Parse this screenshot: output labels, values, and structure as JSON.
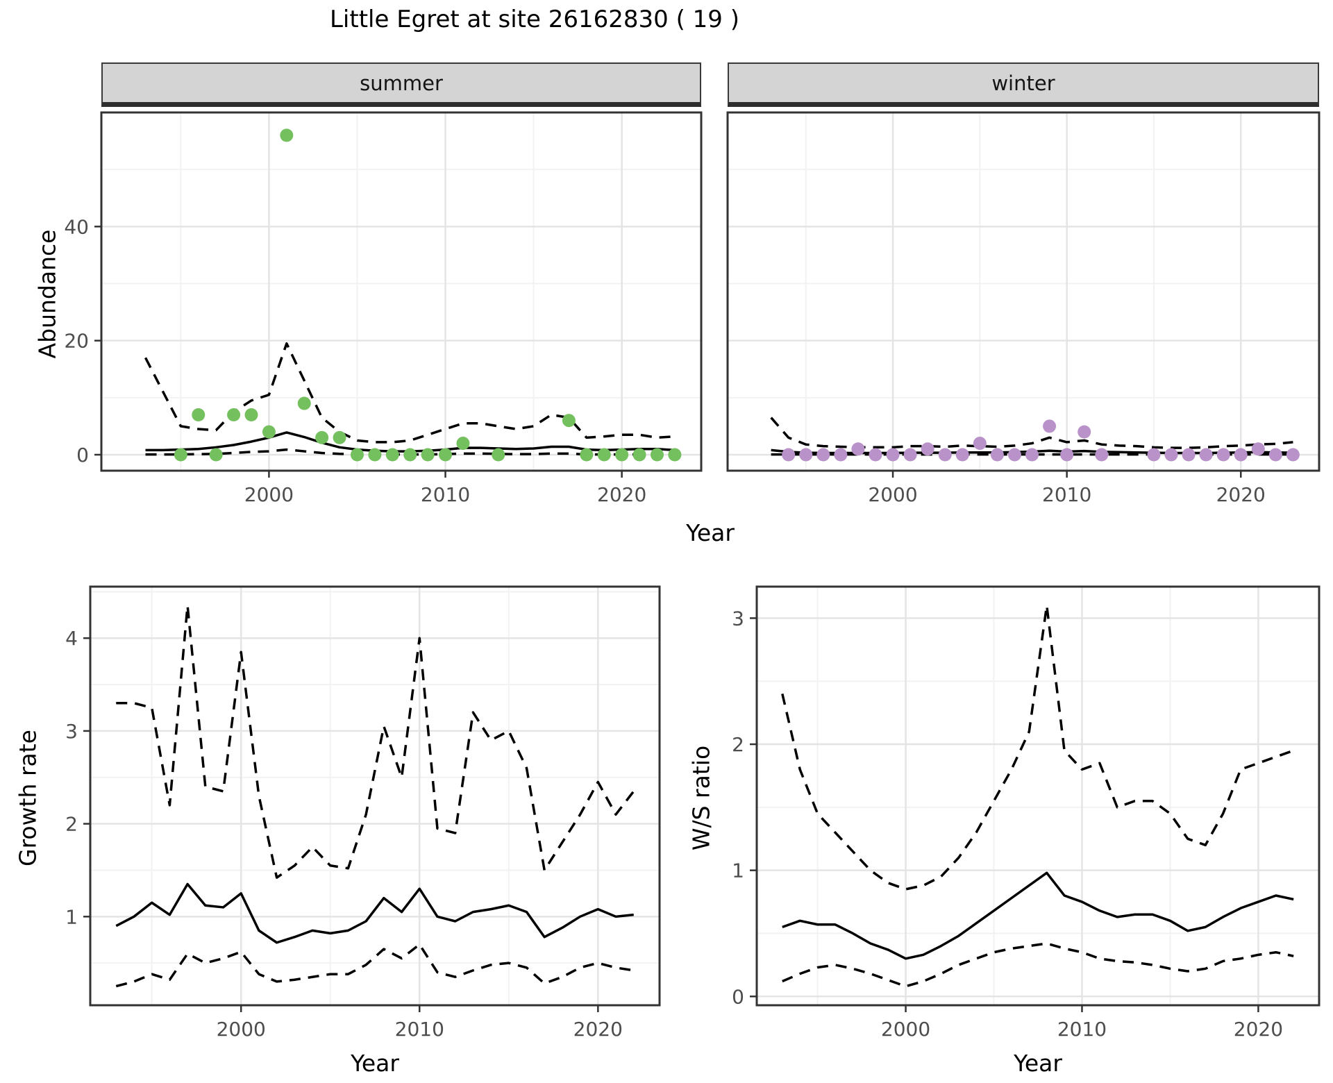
{
  "title": "Little Egret at site 26162830 ( 19 )",
  "facets": [
    {
      "label": "summer"
    },
    {
      "label": "winter"
    }
  ],
  "axis_labels": {
    "abundance": "Abundance",
    "year": "Year",
    "growth": "Growth rate",
    "ws": "W/S ratio"
  },
  "colors": {
    "summer_point": "#74c05e",
    "winter_point": "#b892c8",
    "line": "#000000",
    "grid_major": "#e4e4e4",
    "grid_minor": "#f2f2f2",
    "panel_border": "#333333",
    "tick_mark": "#333333",
    "tick_text": "#4d4d4d",
    "strip_bg": "#d4d4d4"
  },
  "chart_data": [
    {
      "id": "abundance-summer",
      "type": "scatter",
      "facet": "summer",
      "xlabel": "Year",
      "ylabel": "Abundance",
      "xlim": [
        1990.5,
        2024.5
      ],
      "ylim": [
        -2.8,
        60
      ],
      "xticks": [
        2000,
        2010,
        2020
      ],
      "xminor": [
        1995,
        2005,
        2015
      ],
      "yticks": [
        0,
        20,
        40
      ],
      "yminor": [
        10,
        30,
        50
      ],
      "show_y_labels": true,
      "point_color_key": "summer_point",
      "points": {
        "x": [
          1995,
          1996,
          1997,
          1998,
          1999,
          2000,
          2001,
          2002,
          2003,
          2004,
          2005,
          2006,
          2007,
          2008,
          2009,
          2010,
          2011,
          2013,
          2017,
          2018,
          2019,
          2020,
          2021,
          2022,
          2023
        ],
        "y": [
          0,
          7,
          0,
          7,
          7,
          4,
          56,
          9,
          3,
          3,
          0,
          0,
          0,
          0,
          0,
          0,
          2,
          0,
          6,
          0,
          0,
          0,
          0,
          0,
          0
        ]
      },
      "fit": {
        "x": [
          1993,
          1994,
          1995,
          1996,
          1997,
          1998,
          1999,
          2000,
          2001,
          2002,
          2003,
          2004,
          2005,
          2006,
          2007,
          2008,
          2009,
          2010,
          2011,
          2012,
          2013,
          2014,
          2015,
          2016,
          2017,
          2018,
          2019,
          2020,
          2021,
          2022,
          2023
        ],
        "y": [
          0.8,
          0.8,
          0.9,
          1.0,
          1.3,
          1.7,
          2.3,
          3.0,
          3.9,
          3.1,
          2.1,
          1.3,
          0.9,
          0.7,
          0.6,
          0.6,
          0.7,
          0.9,
          1.2,
          1.2,
          1.1,
          1.0,
          1.1,
          1.4,
          1.4,
          0.9,
          0.8,
          0.9,
          1.0,
          1.0,
          0.8
        ]
      },
      "upper": {
        "x": [
          1993,
          1994,
          1995,
          1996,
          1997,
          1998,
          1999,
          2000,
          2001,
          2002,
          2003,
          2004,
          2005,
          2006,
          2007,
          2008,
          2009,
          2010,
          2011,
          2012,
          2013,
          2014,
          2015,
          2016,
          2017,
          2018,
          2019,
          2020,
          2021,
          2022,
          2023
        ],
        "y": [
          17,
          11,
          5,
          4.5,
          4.3,
          7.5,
          9.5,
          10.5,
          19.5,
          13,
          6.5,
          4,
          2.5,
          2.2,
          2.2,
          2.5,
          3.5,
          4.5,
          5.5,
          5.5,
          5,
          4.5,
          5,
          7,
          6.5,
          3,
          3.2,
          3.5,
          3.5,
          3,
          3.2
        ]
      },
      "lower": {
        "x": [
          1993,
          1994,
          1995,
          1996,
          1997,
          1998,
          1999,
          2000,
          2001,
          2002,
          2003,
          2004,
          2005,
          2006,
          2007,
          2008,
          2009,
          2010,
          2011,
          2012,
          2013,
          2014,
          2015,
          2016,
          2017,
          2018,
          2019,
          2020,
          2021,
          2022,
          2023
        ],
        "y": [
          0.05,
          0.05,
          0.05,
          0.1,
          0.15,
          0.3,
          0.5,
          0.6,
          0.9,
          0.6,
          0.3,
          0.15,
          0.1,
          0.05,
          0.05,
          0.05,
          0.05,
          0.1,
          0.2,
          0.2,
          0.15,
          0.1,
          0.1,
          0.2,
          0.2,
          0.05,
          0.05,
          0.05,
          0.05,
          0.05,
          0.05
        ]
      }
    },
    {
      "id": "abundance-winter",
      "type": "scatter",
      "facet": "winter",
      "xlabel": "Year",
      "ylabel": "Abundance",
      "xlim": [
        1990.5,
        2024.5
      ],
      "ylim": [
        -2.8,
        60
      ],
      "xticks": [
        2000,
        2010,
        2020
      ],
      "xminor": [
        1995,
        2005,
        2015
      ],
      "yticks": [
        0,
        20,
        40
      ],
      "yminor": [
        10,
        30,
        50
      ],
      "show_y_labels": false,
      "point_color_key": "winter_point",
      "points": {
        "x": [
          1994,
          1995,
          1996,
          1997,
          1998,
          1999,
          2000,
          2001,
          2002,
          2003,
          2004,
          2005,
          2006,
          2007,
          2008,
          2009,
          2010,
          2011,
          2012,
          2015,
          2016,
          2017,
          2018,
          2019,
          2020,
          2021,
          2022,
          2023
        ],
        "y": [
          0,
          0,
          0,
          0,
          1,
          0,
          0,
          0,
          1,
          0,
          0,
          2,
          0,
          0,
          0,
          5,
          0,
          4,
          0,
          0,
          0,
          0,
          0,
          0,
          0,
          1,
          0,
          0
        ]
      },
      "fit": {
        "x": [
          1993,
          1994,
          1995,
          1996,
          1997,
          1998,
          1999,
          2000,
          2001,
          2002,
          2003,
          2004,
          2005,
          2006,
          2007,
          2008,
          2009,
          2010,
          2011,
          2012,
          2013,
          2014,
          2015,
          2016,
          2017,
          2018,
          2019,
          2020,
          2021,
          2022,
          2023
        ],
        "y": [
          0.8,
          0.5,
          0.35,
          0.3,
          0.3,
          0.3,
          0.3,
          0.3,
          0.35,
          0.35,
          0.35,
          0.4,
          0.4,
          0.4,
          0.45,
          0.55,
          0.7,
          0.55,
          0.65,
          0.5,
          0.45,
          0.4,
          0.35,
          0.3,
          0.3,
          0.3,
          0.35,
          0.4,
          0.45,
          0.4,
          0.35
        ]
      },
      "upper": {
        "x": [
          1993,
          1994,
          1995,
          1996,
          1997,
          1998,
          1999,
          2000,
          2001,
          2002,
          2003,
          2004,
          2005,
          2006,
          2007,
          2008,
          2009,
          2010,
          2011,
          2012,
          2013,
          2014,
          2015,
          2016,
          2017,
          2018,
          2019,
          2020,
          2021,
          2022,
          2023
        ],
        "y": [
          6.5,
          3.0,
          1.8,
          1.5,
          1.4,
          1.3,
          1.3,
          1.3,
          1.5,
          1.5,
          1.4,
          1.6,
          1.5,
          1.4,
          1.6,
          2.0,
          3.0,
          2.2,
          2.5,
          1.8,
          1.6,
          1.5,
          1.3,
          1.2,
          1.2,
          1.3,
          1.5,
          1.6,
          1.8,
          1.9,
          2.2
        ]
      },
      "lower": {
        "x": [
          1993,
          1994,
          1995,
          1996,
          1997,
          1998,
          1999,
          2000,
          2001,
          2002,
          2003,
          2004,
          2005,
          2006,
          2007,
          2008,
          2009,
          2010,
          2011,
          2012,
          2013,
          2014,
          2015,
          2016,
          2017,
          2018,
          2019,
          2020,
          2021,
          2022,
          2023
        ],
        "y": [
          0.05,
          0.05,
          0.05,
          0.05,
          0.05,
          0.05,
          0.05,
          0.05,
          0.05,
          0.05,
          0.05,
          0.05,
          0.05,
          0.05,
          0.05,
          0.05,
          0.05,
          0.05,
          0.05,
          0.05,
          0.05,
          0.05,
          0.05,
          0.05,
          0.05,
          0.05,
          0.05,
          0.05,
          0.05,
          0.05,
          0.05
        ]
      }
    },
    {
      "id": "growth-rate",
      "type": "line",
      "facet": null,
      "xlabel": "Year",
      "ylabel": "Growth rate",
      "xlim": [
        1991.55,
        2023.45
      ],
      "ylim": [
        0.045,
        4.555
      ],
      "xticks": [
        2000,
        2010,
        2020
      ],
      "xminor": [
        1995,
        2005,
        2015
      ],
      "yticks": [
        1,
        2,
        3,
        4
      ],
      "yminor": [
        0.5,
        1.5,
        2.5,
        3.5,
        4.5
      ],
      "show_y_labels": true,
      "points": {
        "x": [],
        "y": []
      },
      "fit": {
        "x": [
          1993,
          1994,
          1995,
          1996,
          1997,
          1998,
          1999,
          2000,
          2001,
          2002,
          2003,
          2004,
          2005,
          2006,
          2007,
          2008,
          2009,
          2010,
          2011,
          2012,
          2013,
          2014,
          2015,
          2016,
          2017,
          2018,
          2019,
          2020,
          2021,
          2022
        ],
        "y": [
          0.9,
          1.0,
          1.15,
          1.02,
          1.35,
          1.12,
          1.1,
          1.25,
          0.85,
          0.72,
          0.78,
          0.85,
          0.82,
          0.85,
          0.95,
          1.2,
          1.05,
          1.3,
          1.0,
          0.95,
          1.05,
          1.08,
          1.12,
          1.05,
          0.78,
          0.88,
          1.0,
          1.08,
          1.0,
          1.02
        ]
      },
      "upper": {
        "x": [
          1993,
          1994,
          1995,
          1996,
          1997,
          1998,
          1999,
          2000,
          2001,
          2002,
          2003,
          2004,
          2005,
          2006,
          2007,
          2008,
          2009,
          2010,
          2011,
          2012,
          2013,
          2014,
          2015,
          2016,
          2017,
          2018,
          2019,
          2020,
          2021,
          2022
        ],
        "y": [
          3.3,
          3.3,
          3.25,
          2.2,
          4.35,
          2.4,
          2.35,
          3.85,
          2.3,
          1.42,
          1.55,
          1.75,
          1.55,
          1.52,
          2.1,
          3.05,
          2.5,
          4.0,
          1.95,
          1.9,
          3.2,
          2.9,
          3.0,
          2.6,
          1.5,
          1.8,
          2.1,
          2.45,
          2.1,
          2.35
        ]
      },
      "lower": {
        "x": [
          1993,
          1994,
          1995,
          1996,
          1997,
          1998,
          1999,
          2000,
          2001,
          2002,
          2003,
          2004,
          2005,
          2006,
          2007,
          2008,
          2009,
          2010,
          2011,
          2012,
          2013,
          2014,
          2015,
          2016,
          2017,
          2018,
          2019,
          2020,
          2021,
          2022
        ],
        "y": [
          0.25,
          0.3,
          0.38,
          0.32,
          0.6,
          0.5,
          0.55,
          0.62,
          0.38,
          0.3,
          0.32,
          0.35,
          0.38,
          0.38,
          0.48,
          0.65,
          0.55,
          0.7,
          0.4,
          0.35,
          0.42,
          0.48,
          0.5,
          0.45,
          0.28,
          0.35,
          0.45,
          0.5,
          0.45,
          0.42
        ]
      }
    },
    {
      "id": "ws-ratio",
      "type": "line",
      "facet": null,
      "xlabel": "Year",
      "ylabel": "W/S ratio",
      "xlim": [
        1991.55,
        2023.45
      ],
      "ylim": [
        -0.07,
        3.25
      ],
      "xticks": [
        2000,
        2010,
        2020
      ],
      "xminor": [
        1995,
        2005,
        2015
      ],
      "yticks": [
        0,
        1,
        2,
        3
      ],
      "yminor": [
        0.5,
        1.5,
        2.5
      ],
      "show_y_labels": true,
      "points": {
        "x": [],
        "y": []
      },
      "fit": {
        "x": [
          1993,
          1994,
          1995,
          1996,
          1997,
          1998,
          1999,
          2000,
          2001,
          2002,
          2003,
          2004,
          2005,
          2006,
          2007,
          2008,
          2009,
          2010,
          2011,
          2012,
          2013,
          2014,
          2015,
          2016,
          2017,
          2018,
          2019,
          2020,
          2021,
          2022
        ],
        "y": [
          0.55,
          0.6,
          0.57,
          0.57,
          0.5,
          0.42,
          0.37,
          0.3,
          0.33,
          0.4,
          0.48,
          0.58,
          0.68,
          0.78,
          0.88,
          0.98,
          0.8,
          0.75,
          0.68,
          0.63,
          0.65,
          0.65,
          0.6,
          0.52,
          0.55,
          0.63,
          0.7,
          0.75,
          0.8,
          0.77
        ]
      },
      "upper": {
        "x": [
          1993,
          1994,
          1995,
          1996,
          1997,
          1998,
          1999,
          2000,
          2001,
          2002,
          2003,
          2004,
          2005,
          2006,
          2007,
          2008,
          2009,
          2010,
          2011,
          2012,
          2013,
          2014,
          2015,
          2016,
          2017,
          2018,
          2019,
          2020,
          2021,
          2022
        ],
        "y": [
          2.4,
          1.8,
          1.45,
          1.3,
          1.15,
          1.0,
          0.9,
          0.85,
          0.88,
          0.95,
          1.1,
          1.3,
          1.55,
          1.8,
          2.1,
          3.1,
          1.95,
          1.8,
          1.85,
          1.5,
          1.55,
          1.55,
          1.45,
          1.25,
          1.2,
          1.45,
          1.8,
          1.85,
          1.9,
          1.95
        ]
      },
      "lower": {
        "x": [
          1993,
          1994,
          1995,
          1996,
          1997,
          1998,
          1999,
          2000,
          2001,
          2002,
          2003,
          2004,
          2005,
          2006,
          2007,
          2008,
          2009,
          2010,
          2011,
          2012,
          2013,
          2014,
          2015,
          2016,
          2017,
          2018,
          2019,
          2020,
          2021,
          2022
        ],
        "y": [
          0.12,
          0.18,
          0.23,
          0.25,
          0.22,
          0.18,
          0.13,
          0.08,
          0.12,
          0.18,
          0.25,
          0.3,
          0.35,
          0.38,
          0.4,
          0.42,
          0.38,
          0.35,
          0.3,
          0.28,
          0.27,
          0.25,
          0.22,
          0.2,
          0.22,
          0.28,
          0.3,
          0.33,
          0.35,
          0.32
        ]
      }
    }
  ]
}
